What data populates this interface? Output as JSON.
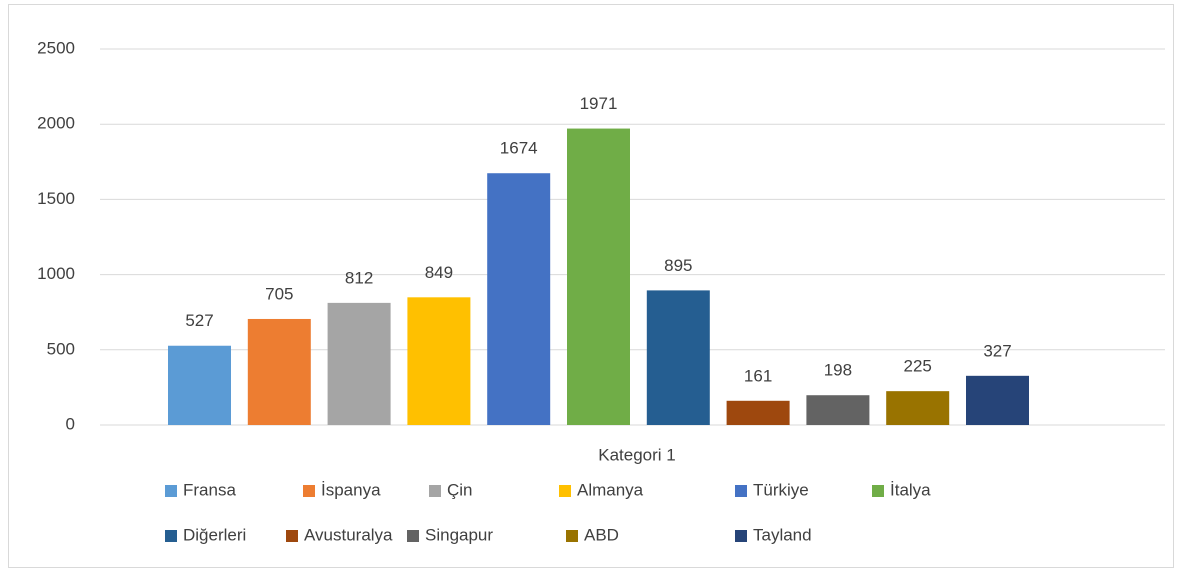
{
  "chart_data": {
    "type": "bar",
    "categories": [
      "Kategori 1"
    ],
    "series": [
      {
        "name": "Fransa",
        "color": "#5B9BD5",
        "values": [
          527
        ]
      },
      {
        "name": "İspanya",
        "color": "#ED7D31",
        "values": [
          705
        ]
      },
      {
        "name": "Çin",
        "color": "#A5A5A5",
        "values": [
          812
        ]
      },
      {
        "name": "Almanya",
        "color": "#FFC000",
        "values": [
          849
        ]
      },
      {
        "name": "Türkiye",
        "color": "#4472C4",
        "values": [
          1674
        ]
      },
      {
        "name": "İtalya",
        "color": "#70AD47",
        "values": [
          1971
        ]
      },
      {
        "name": "Diğerleri",
        "color": "#255E91",
        "values": [
          895
        ]
      },
      {
        "name": "Avusturalya",
        "color": "#9E480E",
        "values": [
          161
        ]
      },
      {
        "name": "Singapur",
        "color": "#636363",
        "values": [
          198
        ]
      },
      {
        "name": "ABD",
        "color": "#997300",
        "values": [
          225
        ]
      },
      {
        "name": "Tayland",
        "color": "#264478",
        "values": [
          327
        ]
      }
    ],
    "ylim": [
      0,
      2500
    ],
    "yticks": [
      0,
      500,
      1000,
      1500,
      2000,
      2500
    ],
    "grid": true,
    "legend": "bottom"
  }
}
